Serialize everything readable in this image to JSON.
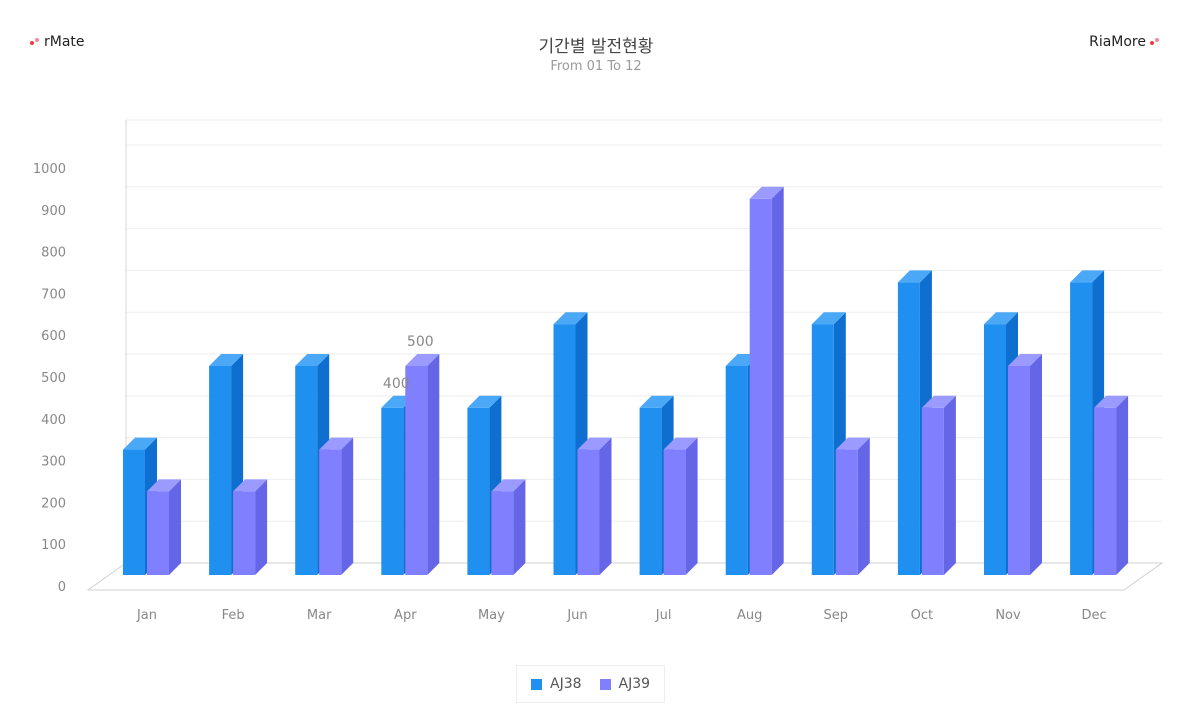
{
  "brand_left": "rMate",
  "brand_right": "RiaMore",
  "colors": {
    "brand_dot_red": "#e8403a",
    "brand_dot_pink": "#f08aa0",
    "series1_front": "#1f8ff0",
    "series1_side": "#0f6fd0",
    "series1_top": "#4aa8f7",
    "series2_front": "#8080ff",
    "series2_side": "#6565e8",
    "series2_top": "#9a9aff",
    "grid": "#eeeeee",
    "axis_text": "#888888"
  },
  "chart_data": {
    "type": "bar",
    "title": "기간별 발전현황",
    "subtitle": "From 01 To 12",
    "categories": [
      "Jan",
      "Feb",
      "Mar",
      "Apr",
      "May",
      "Jun",
      "Jul",
      "Aug",
      "Sep",
      "Oct",
      "Nov",
      "Dec"
    ],
    "series": [
      {
        "name": "AJ38",
        "values": [
          300,
          500,
          500,
          400,
          400,
          600,
          400,
          500,
          600,
          700,
          600,
          700
        ]
      },
      {
        "name": "AJ39",
        "values": [
          200,
          200,
          300,
          500,
          200,
          300,
          300,
          900,
          300,
          400,
          500,
          400
        ]
      }
    ],
    "y_ticks": [
      0,
      100,
      200,
      300,
      400,
      500,
      600,
      700,
      800,
      900,
      1000
    ],
    "ylim": [
      0,
      1000
    ],
    "grid": true,
    "legend_position": "bottom",
    "data_labels": [
      {
        "series": 0,
        "category": "Apr",
        "text": "400"
      },
      {
        "series": 1,
        "category": "Apr",
        "text": "500"
      }
    ]
  }
}
